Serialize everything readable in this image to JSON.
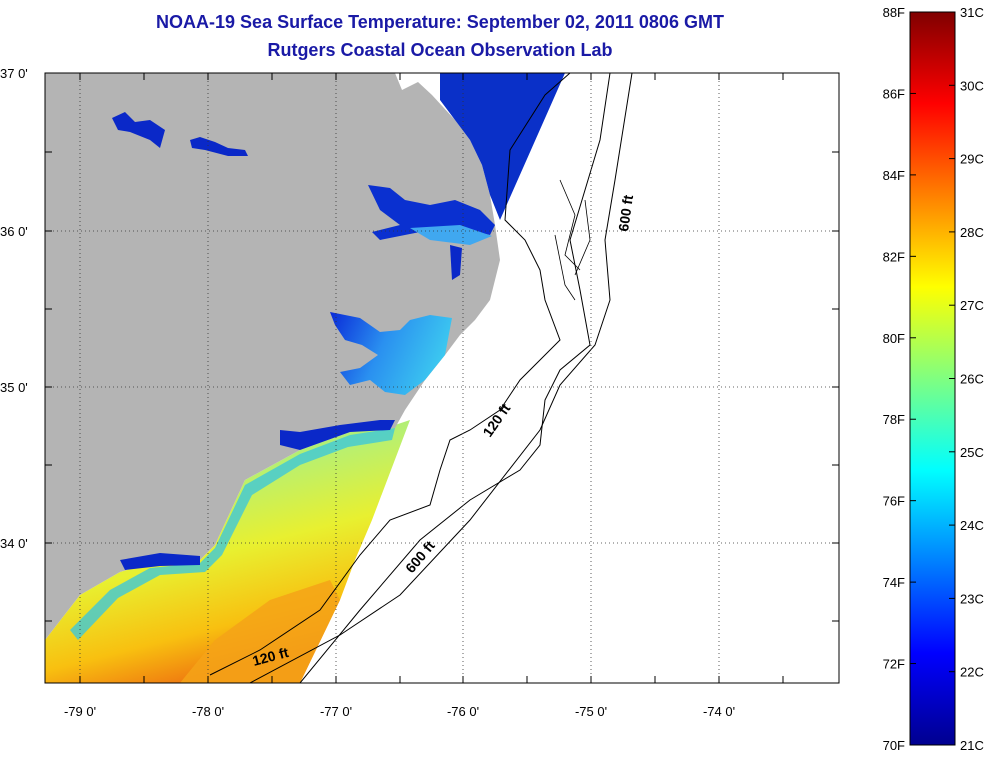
{
  "header": {
    "title": "NOAA-19 Sea Surface Temperature:  September 02, 2011 0806 GMT",
    "subtitle": "Rutgers Coastal Ocean Observation Lab"
  },
  "map": {
    "lat_labels": [
      "37 0'",
      "36 0'",
      "35 0'",
      "34 0'"
    ],
    "lon_labels": [
      "-79 0'",
      "-78 0'",
      "-77 0'",
      "-76 0'",
      "-75 0'",
      "-74 0'"
    ],
    "contour_labels": [
      "600 ft",
      "120 ft",
      "600 ft",
      "120 ft"
    ],
    "colors": {
      "land": "#b4b4b4",
      "swath_edge": "#ffffff"
    }
  },
  "colorbar": {
    "fahrenheit": [
      "88F",
      "86F",
      "84F",
      "82F",
      "80F",
      "78F",
      "76F",
      "74F",
      "72F",
      "70F"
    ],
    "celsius": [
      "31C",
      "30C",
      "29C",
      "28C",
      "27C",
      "26C",
      "25C",
      "24C",
      "23C",
      "22C",
      "21C"
    ],
    "colormap": [
      "#00008f",
      "#0000ff",
      "#0080ff",
      "#00ffff",
      "#80ff80",
      "#ffff00",
      "#ff8000",
      "#ff0000",
      "#800000"
    ]
  }
}
